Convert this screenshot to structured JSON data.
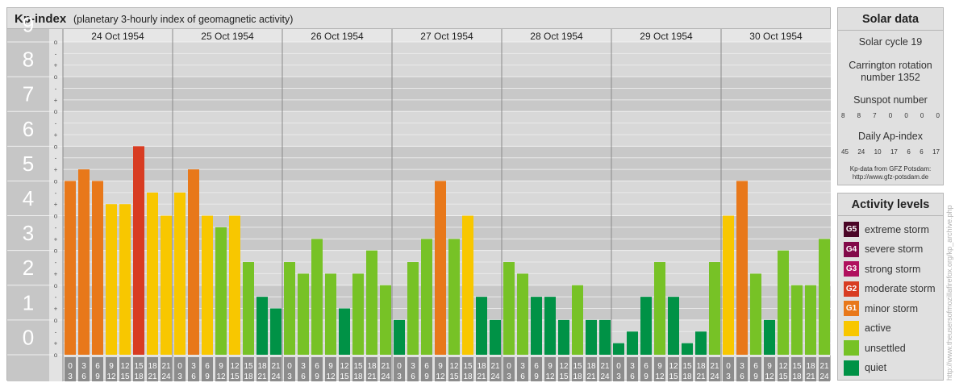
{
  "header": {
    "title": "Kp-index",
    "subtitle": "(planetary 3-hourly index of geomagnetic activity)"
  },
  "chart_data": {
    "type": "bar",
    "days": [
      "24 Oct 1954",
      "25 Oct 1954",
      "26 Oct 1954",
      "27 Oct 1954",
      "28 Oct 1954",
      "29 Oct 1954",
      "30 Oct 1954"
    ],
    "ylim": [
      0,
      9
    ],
    "y_ticks": [
      "0",
      "1",
      "2",
      "3",
      "4",
      "5",
      "6",
      "7",
      "8",
      "9"
    ],
    "fine_ticks": [
      "o",
      "+",
      "-",
      "o"
    ],
    "interval_top_labels": [
      "0",
      "3",
      "6",
      "9",
      "12",
      "15",
      "18",
      "21"
    ],
    "interval_bottom_labels": [
      "3",
      "6",
      "9",
      "12",
      "15",
      "18",
      "21",
      "24"
    ],
    "values": [
      [
        5.0,
        5.333,
        5.0,
        4.333,
        4.333,
        6.0,
        4.667,
        4.0
      ],
      [
        4.667,
        5.333,
        4.0,
        3.667,
        4.0,
        2.667,
        1.667,
        1.333
      ],
      [
        2.667,
        2.333,
        3.333,
        2.333,
        1.333,
        2.333,
        3.0,
        2.0
      ],
      [
        1.0,
        2.667,
        3.333,
        5.0,
        3.333,
        4.0,
        1.667,
        1.0
      ],
      [
        2.667,
        2.333,
        1.667,
        1.667,
        1.0,
        2.0,
        1.0,
        1.0
      ],
      [
        0.333,
        0.667,
        1.667,
        2.667,
        1.667,
        0.333,
        0.667,
        2.667
      ],
      [
        4.0,
        5.0,
        2.333,
        1.0,
        3.0,
        2.0,
        2.0,
        3.333
      ]
    ],
    "colors": {
      "quiet": "#009246",
      "unsettled": "#77c226",
      "active": "#f8c700",
      "G1": "#e8781a",
      "G2": "#d83c22",
      "G3": "#b0105e",
      "G4": "#820a4a",
      "G5": "#4a0526"
    }
  },
  "solar": {
    "title": "Solar data",
    "cycle": "Solar cycle 19",
    "carrington": "Carrington rotation number 1352",
    "sunspot_title": "Sunspot number",
    "sunspot_values": [
      "8",
      "8",
      "7",
      "0",
      "0",
      "0",
      "0"
    ],
    "ap_title": "Daily Ap-index",
    "ap_values": [
      "45",
      "24",
      "10",
      "17",
      "6",
      "6",
      "17"
    ],
    "credit_line1": "Kp-data from GFZ Potsdam:",
    "credit_line2": "http://www.gfz-potsdam.de"
  },
  "activity": {
    "title": "Activity levels",
    "items": [
      {
        "code": "G5",
        "label": "extreme storm",
        "color": "#4a0526"
      },
      {
        "code": "G4",
        "label": "severe storm",
        "color": "#820a4a"
      },
      {
        "code": "G3",
        "label": "strong storm",
        "color": "#b0105e"
      },
      {
        "code": "G2",
        "label": "moderate storm",
        "color": "#d83c22"
      },
      {
        "code": "G1",
        "label": "minor storm",
        "color": "#e8781a"
      },
      {
        "code": "",
        "label": "active",
        "color": "#f8c700"
      },
      {
        "code": "",
        "label": "unsettled",
        "color": "#77c226"
      },
      {
        "code": "",
        "label": "quiet",
        "color": "#009246"
      }
    ]
  },
  "watermark": "http://www.theusersofmozillafirefox.org/kp_archive.php"
}
